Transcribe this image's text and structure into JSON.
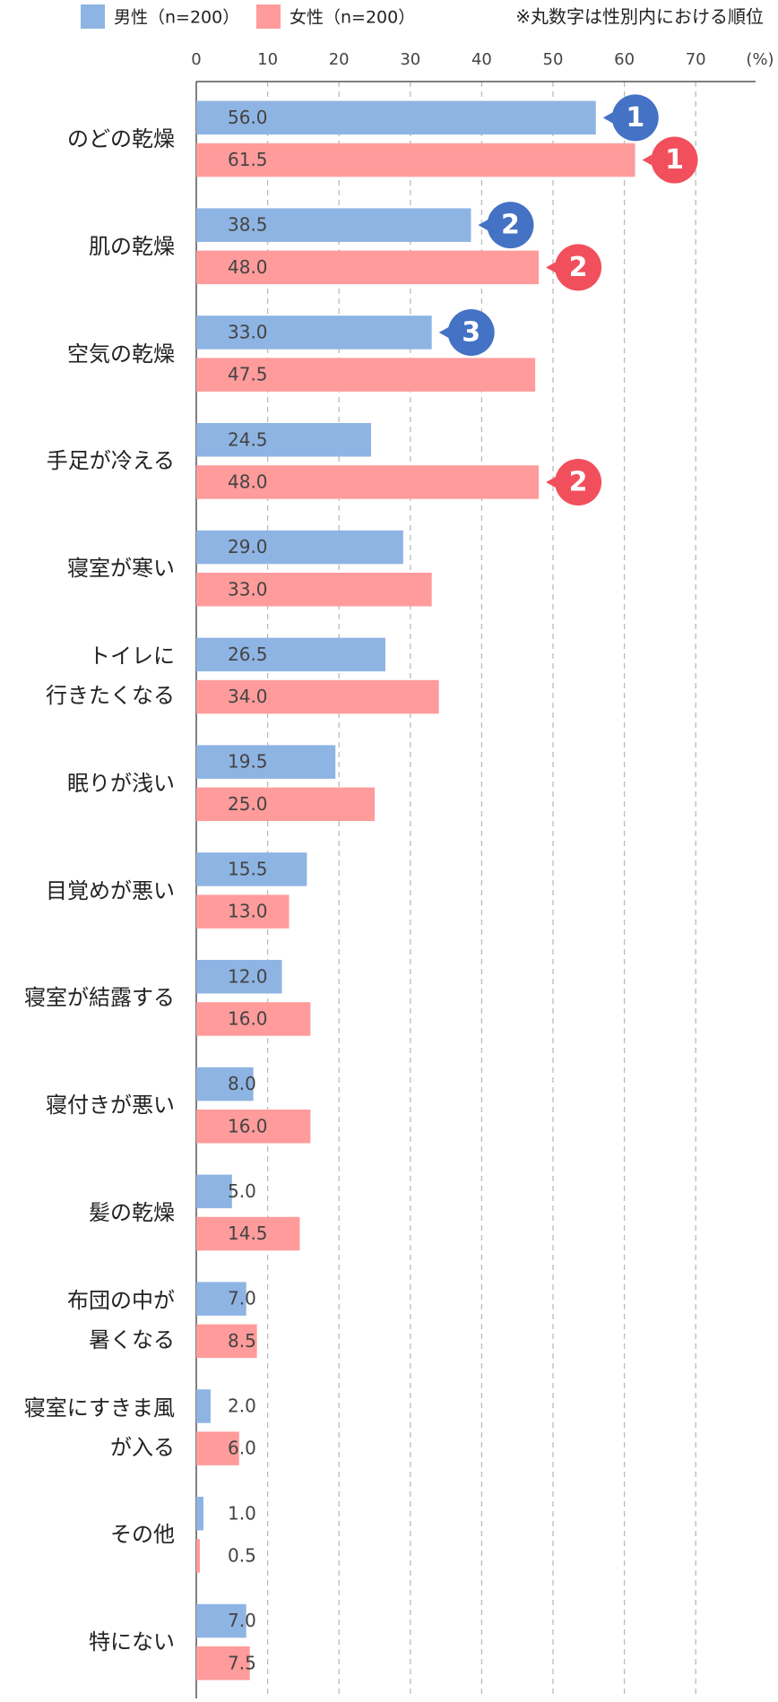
{
  "chart_data": {
    "type": "bar",
    "orientation": "horizontal",
    "categories": [
      "のどの乾燥",
      "肌の乾燥",
      "空気の乾燥",
      "手足が冷える",
      "寝室が寒い",
      "トイレに\n行きたくなる",
      "眠りが浅い",
      "目覚めが悪い",
      "寝室が結露する",
      "寝付きが悪い",
      "髪の乾燥",
      "布団の中が\n暑くなる",
      "寝室にすきま風\nが入る",
      "その他",
      "特にない"
    ],
    "series": [
      {
        "name": "男性（n=200）",
        "color": "#8eb4e3",
        "rank_color": "#4472c4",
        "values": [
          56.0,
          38.5,
          33.0,
          24.5,
          29.0,
          26.5,
          19.5,
          15.5,
          12.0,
          8.0,
          5.0,
          7.0,
          2.0,
          1.0,
          7.0
        ],
        "value_labels": [
          "56.0",
          "38.5",
          "33.0",
          "24.5",
          "29.0",
          "26.5",
          "19.5",
          "15.5",
          "12.0",
          "8.0",
          "5.0",
          "7.0",
          "2.0",
          "1.0",
          "7.0"
        ],
        "ranks": [
          1,
          2,
          3,
          null,
          null,
          null,
          null,
          null,
          null,
          null,
          null,
          null,
          null,
          null,
          null
        ]
      },
      {
        "name": "女性（n=200）",
        "color": "#ff9b9b",
        "rank_color": "#f24f5c",
        "values": [
          61.5,
          48.0,
          47.5,
          48.0,
          33.0,
          34.0,
          25.0,
          13.0,
          16.0,
          16.0,
          14.5,
          8.5,
          6.0,
          0.5,
          7.5
        ],
        "value_labels": [
          "61.5",
          "48.0",
          "47.5",
          "48.0",
          "33.0",
          "34.0",
          "25.0",
          "13.0",
          "16.0",
          "16.0",
          "14.5",
          "8.5",
          "6.0",
          "0.5",
          "7.5"
        ],
        "ranks": [
          1,
          2,
          null,
          2,
          null,
          null,
          null,
          null,
          null,
          null,
          null,
          null,
          null,
          null,
          null
        ]
      }
    ],
    "note": "※丸数字は性別内における順位",
    "x_unit": "(%)",
    "xlim": [
      0,
      70
    ],
    "xticks": [
      0,
      10,
      20,
      30,
      40,
      50,
      60,
      70
    ],
    "grid": true
  }
}
